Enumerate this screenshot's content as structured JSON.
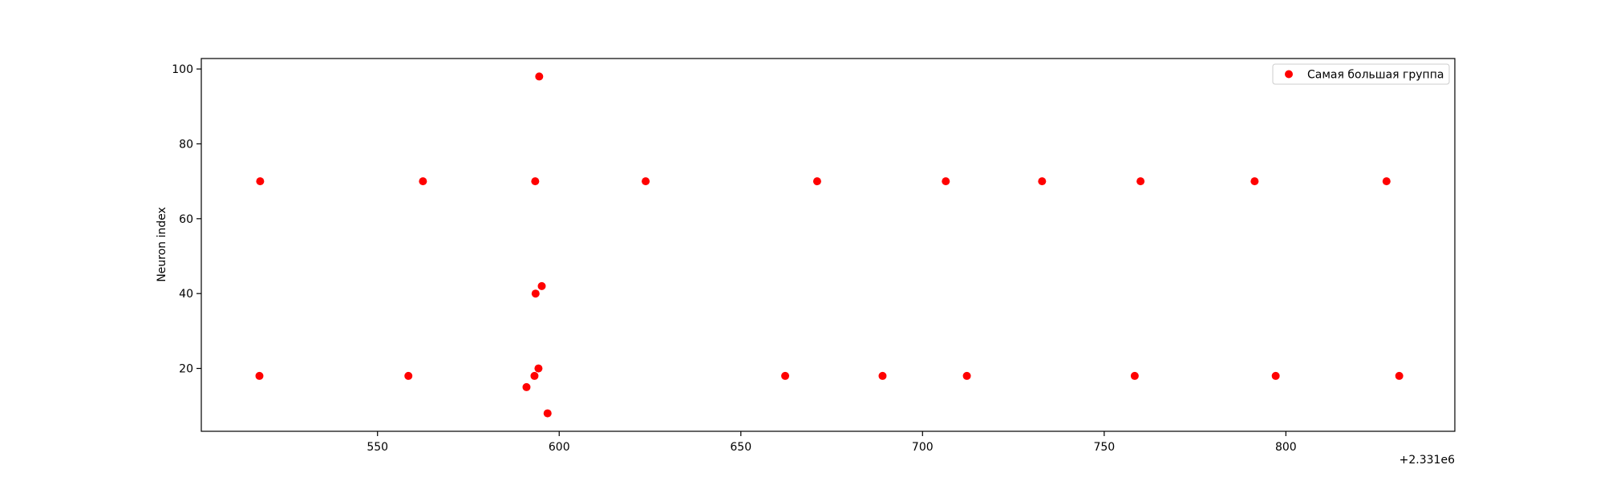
{
  "chart_data": {
    "type": "scatter",
    "title": "",
    "xlabel": "",
    "ylabel": "Neuron index",
    "x_offset_label": "+2.331e6",
    "xlim": [
      501.5,
      846.5
    ],
    "ylim": [
      3.2,
      102.8
    ],
    "x_ticks": [
      550,
      600,
      650,
      700,
      750,
      800
    ],
    "y_ticks": [
      20,
      40,
      60,
      80,
      100
    ],
    "grid": false,
    "legend_position": "top-right",
    "marker_color": "#ff0000",
    "series": [
      {
        "name": "Самая большая группа",
        "points": [
          {
            "x": 517.5,
            "y": 18
          },
          {
            "x": 517.7,
            "y": 70
          },
          {
            "x": 558.5,
            "y": 18
          },
          {
            "x": 562.5,
            "y": 70
          },
          {
            "x": 591.0,
            "y": 15
          },
          {
            "x": 593.2,
            "y": 18
          },
          {
            "x": 593.4,
            "y": 70
          },
          {
            "x": 593.5,
            "y": 40
          },
          {
            "x": 594.3,
            "y": 20
          },
          {
            "x": 594.5,
            "y": 98
          },
          {
            "x": 595.2,
            "y": 42
          },
          {
            "x": 596.8,
            "y": 8
          },
          {
            "x": 623.8,
            "y": 70
          },
          {
            "x": 662.2,
            "y": 18
          },
          {
            "x": 671.0,
            "y": 70
          },
          {
            "x": 689.0,
            "y": 18
          },
          {
            "x": 706.4,
            "y": 70
          },
          {
            "x": 712.2,
            "y": 18
          },
          {
            "x": 732.9,
            "y": 70
          },
          {
            "x": 758.4,
            "y": 18
          },
          {
            "x": 760.0,
            "y": 70
          },
          {
            "x": 791.4,
            "y": 70
          },
          {
            "x": 797.2,
            "y": 18
          },
          {
            "x": 827.7,
            "y": 70
          },
          {
            "x": 831.2,
            "y": 18
          }
        ]
      }
    ]
  }
}
